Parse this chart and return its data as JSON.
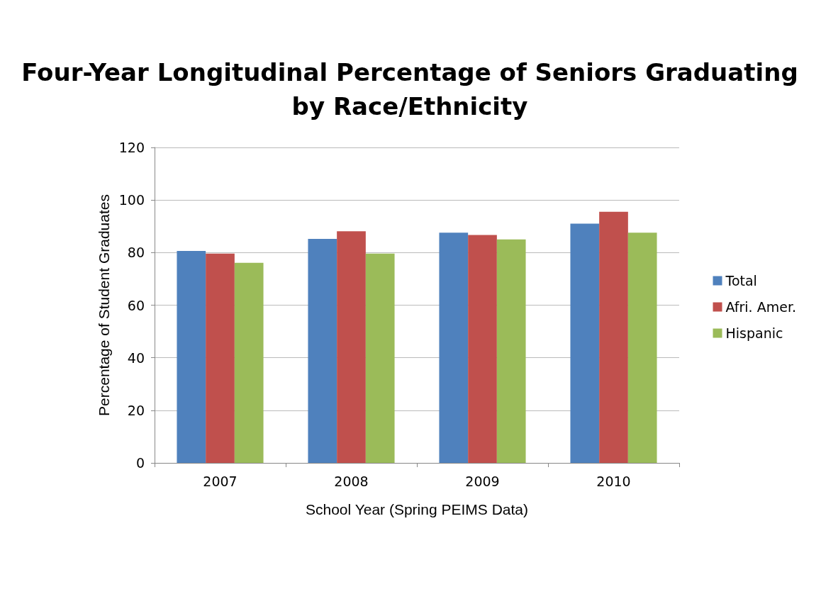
{
  "chart_data": {
    "type": "bar",
    "title": "Four-Year Longitudinal Percentage of Seniors Graduating\nby Race/Ethnicity",
    "xlabel": "School Year (Spring PEIMS Data)",
    "ylabel": "Percentage of Student Graduates",
    "categories": [
      "2007",
      "2008",
      "2009",
      "2010"
    ],
    "series": [
      {
        "name": "Total",
        "color": "#4f81bd",
        "values": [
          80.6,
          85.2,
          87.6,
          91.0
        ]
      },
      {
        "name": "Afri. Amer.",
        "color": "#c0504d",
        "values": [
          79.6,
          88.1,
          86.7,
          95.5
        ]
      },
      {
        "name": "Hispanic",
        "color": "#9bbb59",
        "values": [
          76.1,
          79.6,
          85.0,
          87.6
        ]
      }
    ],
    "ylim": [
      0,
      120
    ],
    "yticks": [
      0,
      20,
      40,
      60,
      80,
      100,
      120
    ],
    "grid": "y",
    "legend": "right"
  }
}
